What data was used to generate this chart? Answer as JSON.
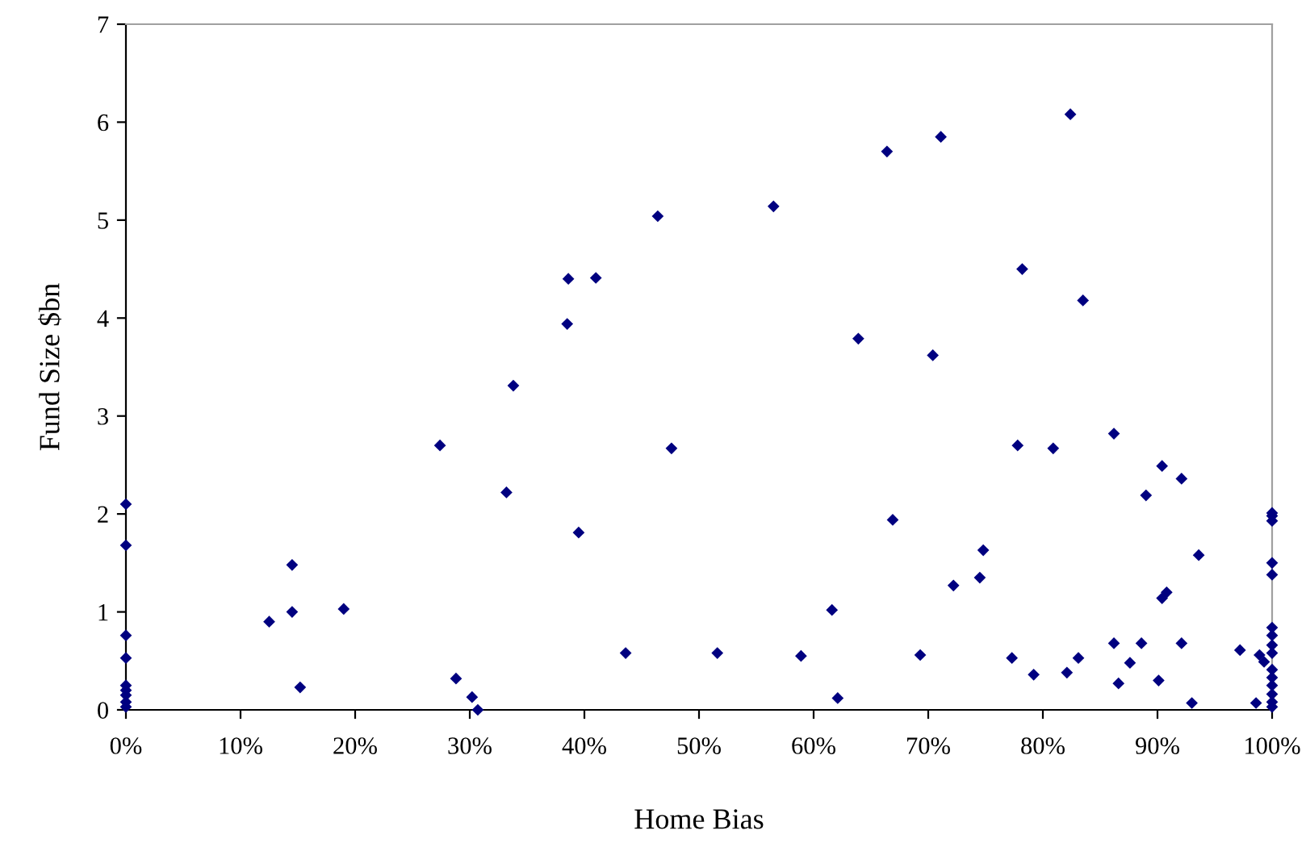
{
  "chart_data": {
    "type": "scatter",
    "xlabel": "Home Bias",
    "ylabel": "Fund Size $bn",
    "marker": "diamond",
    "grid": false,
    "xlim": [
      0,
      100
    ],
    "ylim": [
      0,
      7
    ],
    "xticks": [
      {
        "value": 0,
        "label": "0%"
      },
      {
        "value": 10,
        "label": "10%"
      },
      {
        "value": 20,
        "label": "20%"
      },
      {
        "value": 30,
        "label": "30%"
      },
      {
        "value": 40,
        "label": "40%"
      },
      {
        "value": 50,
        "label": "50%"
      },
      {
        "value": 60,
        "label": "60%"
      },
      {
        "value": 70,
        "label": "70%"
      },
      {
        "value": 80,
        "label": "80%"
      },
      {
        "value": 90,
        "label": "90%"
      },
      {
        "value": 100,
        "label": "100%"
      }
    ],
    "yticks": [
      0,
      1,
      2,
      3,
      4,
      5,
      6,
      7
    ],
    "series": [
      {
        "color": "#000080",
        "x": [
          0,
          0,
          0,
          0,
          0,
          0,
          0,
          0,
          0,
          12.5,
          14.5,
          14.5,
          15.2,
          19,
          27.4,
          28.8,
          30.2,
          30.7,
          33.2,
          33.8,
          38.5,
          38.6,
          41.0,
          39.5,
          43.6,
          46.4,
          47.6,
          51.6,
          56.5,
          58.9,
          61.6,
          62.1,
          66.4,
          63.9,
          66.9,
          69.3,
          71.1,
          70.4,
          72.2,
          74.5,
          74.8,
          77.3,
          77.8,
          78.2,
          79.2,
          80.9,
          82.1,
          82.4,
          83.1,
          83.5,
          86.2,
          86.2,
          86.6,
          87.6,
          88.6,
          89.0,
          90.4,
          90.1,
          90.4,
          90.8,
          92.1,
          92.1,
          93.0,
          93.6,
          97.2,
          98.6,
          98.9,
          99.3,
          100,
          100,
          100,
          100,
          100,
          100,
          100,
          100,
          100,
          100,
          100,
          100,
          100,
          100,
          100
        ],
        "values": [
          2.1,
          1.68,
          0.76,
          0.53,
          0.25,
          0.2,
          0.15,
          0.08,
          0.03,
          0.9,
          1.48,
          1.0,
          0.23,
          1.03,
          2.7,
          0.32,
          0.13,
          0.0,
          2.22,
          3.31,
          3.94,
          4.4,
          4.41,
          1.81,
          0.58,
          5.04,
          2.67,
          0.58,
          5.14,
          0.55,
          1.02,
          0.12,
          5.7,
          3.79,
          1.94,
          0.56,
          5.85,
          3.62,
          1.27,
          1.35,
          1.63,
          0.53,
          2.7,
          4.5,
          0.36,
          2.67,
          0.38,
          6.08,
          0.53,
          4.18,
          2.82,
          0.68,
          0.27,
          0.48,
          0.68,
          2.19,
          2.49,
          0.3,
          1.14,
          1.2,
          2.36,
          0.68,
          0.07,
          1.58,
          0.61,
          0.07,
          0.56,
          0.49,
          2.01,
          1.98,
          1.93,
          1.5,
          1.38,
          0.84,
          0.76,
          0.66,
          0.58,
          0.41,
          0.33,
          0.25,
          0.16,
          0.08,
          0.03
        ]
      }
    ]
  }
}
